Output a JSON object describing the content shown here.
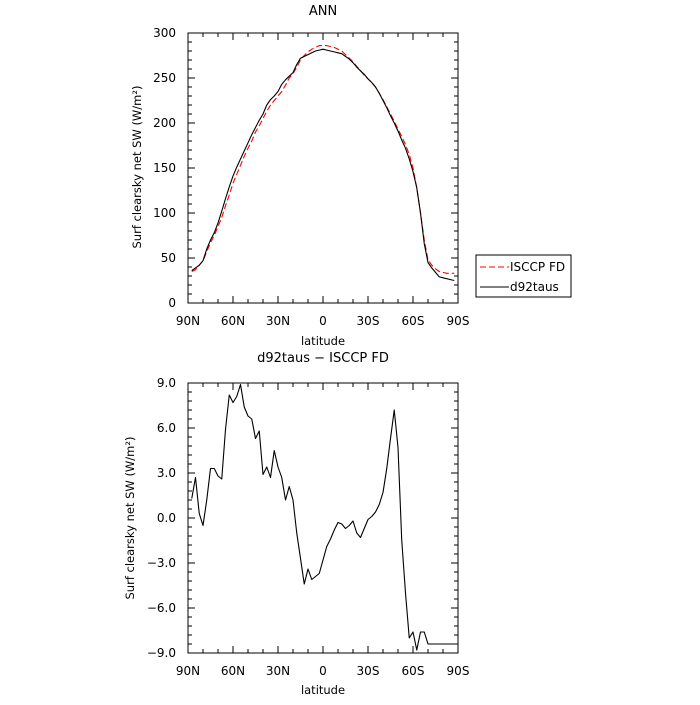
{
  "chart_data": [
    {
      "type": "line",
      "title": "ANN",
      "xlabel": "latitude",
      "ylabel": "Surf clearsky net SW (W/m²)",
      "xlim": [
        90,
        -90
      ],
      "ylim": [
        0,
        300
      ],
      "xticks": [
        90,
        60,
        30,
        0,
        -30,
        -60,
        -90
      ],
      "xtick_labels": [
        "90N",
        "60N",
        "30N",
        "0",
        "30S",
        "60S",
        "90S"
      ],
      "yticks": [
        0,
        50,
        100,
        150,
        200,
        250,
        300
      ],
      "ytick_labels": [
        "0",
        "50",
        "100",
        "150",
        "200",
        "250",
        "300"
      ],
      "legend_position": "outside-right",
      "series": [
        {
          "name": "ISCCP FD",
          "color": "#ff0000",
          "dash": "dashed",
          "x": [
            87.5,
            85,
            82.5,
            80,
            77.5,
            75,
            72.5,
            70,
            67.5,
            65,
            62.5,
            60,
            57.5,
            55,
            52.5,
            50,
            47.5,
            45,
            42.5,
            40,
            37.5,
            35,
            32.5,
            30,
            27.5,
            25,
            22.5,
            20,
            17.5,
            15,
            12.5,
            10,
            7.5,
            5,
            2.5,
            0,
            -2.5,
            -5,
            -7.5,
            -10,
            -12.5,
            -15,
            -17.5,
            -20,
            -22.5,
            -25,
            -27.5,
            -30,
            -32.5,
            -35,
            -37.5,
            -40,
            -42.5,
            -45,
            -47.5,
            -50,
            -52.5,
            -55,
            -57.5,
            -60,
            -62.5,
            -65,
            -67.5,
            -70,
            -72.5,
            -75,
            -77.5,
            -80,
            -82.5,
            -85,
            -87.5
          ],
          "y": [
            35,
            37,
            42,
            47,
            57,
            67,
            75,
            85,
            95,
            108,
            120,
            133,
            143,
            153,
            163,
            172,
            180,
            190,
            197,
            205,
            213,
            220,
            225,
            230,
            235,
            242,
            250,
            255,
            262,
            270,
            275,
            279,
            282,
            284,
            286,
            286,
            286,
            285,
            284,
            282,
            280,
            276,
            272,
            268,
            263,
            258,
            253,
            249,
            245,
            240,
            233,
            226,
            218,
            210,
            202,
            193,
            185,
            176,
            165,
            150,
            128,
            100,
            70,
            48,
            42,
            38,
            35,
            34,
            33,
            33,
            33
          ]
        },
        {
          "name": "d92taus",
          "color": "#000000",
          "dash": "solid",
          "x": [
            87.5,
            85,
            82.5,
            80,
            77.5,
            75,
            72.5,
            70,
            67.5,
            65,
            62.5,
            60,
            57.5,
            55,
            52.5,
            50,
            47.5,
            45,
            42.5,
            40,
            37.5,
            35,
            32.5,
            30,
            27.5,
            25,
            22.5,
            20,
            17.5,
            15,
            12.5,
            10,
            7.5,
            5,
            2.5,
            0,
            -2.5,
            -5,
            -7.5,
            -10,
            -12.5,
            -15,
            -17.5,
            -20,
            -22.5,
            -25,
            -27.5,
            -30,
            -32.5,
            -35,
            -37.5,
            -40,
            -42.5,
            -45,
            -47.5,
            -50,
            -52.5,
            -55,
            -57.5,
            -60,
            -62.5,
            -65,
            -67.5,
            -70,
            -72.5,
            -75,
            -77.5,
            -80,
            -82.5,
            -85,
            -87.5
          ],
          "y": [
            36,
            39,
            42,
            47,
            60,
            70,
            78,
            89,
            102,
            116,
            129,
            141,
            151,
            160,
            169,
            178,
            187,
            195,
            203,
            210,
            220,
            226,
            230,
            235,
            243,
            248,
            252,
            256,
            265,
            272,
            274,
            276,
            278,
            280,
            281,
            282,
            281,
            280,
            279,
            278,
            277,
            274,
            271,
            267,
            262,
            258,
            254,
            249,
            245,
            240,
            233,
            225,
            217,
            208,
            200,
            191,
            181,
            172,
            160,
            146,
            128,
            100,
            66,
            45,
            39,
            34,
            29,
            28,
            27,
            26,
            25
          ]
        }
      ]
    },
    {
      "type": "line",
      "title": "d92taus − ISCCP FD",
      "xlabel": "latitude",
      "ylabel": "Surf clearsky net SW (W/m²)",
      "xlim": [
        90,
        -90
      ],
      "ylim": [
        -9,
        9
      ],
      "xticks": [
        90,
        60,
        30,
        0,
        -30,
        -60,
        -90
      ],
      "xtick_labels": [
        "90N",
        "60N",
        "30N",
        "0",
        "30S",
        "60S",
        "90S"
      ],
      "yticks": [
        -9,
        -6,
        -3,
        0,
        3,
        6,
        9
      ],
      "ytick_labels": [
        "−9.0",
        "−6.0",
        "−3.0",
        "0.0",
        "3.0",
        "6.0",
        "9.0"
      ],
      "series": [
        {
          "name": "",
          "color": "#000000",
          "dash": "solid",
          "x": [
            87.5,
            85,
            82.5,
            80,
            77.5,
            75,
            72.5,
            70,
            67.5,
            65,
            62.5,
            60,
            57.5,
            55,
            52.5,
            50,
            47.5,
            45,
            42.5,
            40,
            37.5,
            35,
            32.5,
            30,
            27.5,
            25,
            22.5,
            20,
            17.5,
            15,
            12.5,
            10,
            7.5,
            5,
            2.5,
            0,
            -2.5,
            -5,
            -7.5,
            -10,
            -12.5,
            -15,
            -17.5,
            -20,
            -22.5,
            -25,
            -27.5,
            -30,
            -32.5,
            -35,
            -37.5,
            -40,
            -42.5,
            -45,
            -47.5,
            -50,
            -52.5,
            -55,
            -57.5,
            -60,
            -62.5,
            -65,
            -67.5,
            -70,
            -72.5,
            -75,
            -77.5,
            -80,
            -82.5,
            -85,
            -87.5
          ],
          "y": [
            1.3,
            2.7,
            0.3,
            -0.5,
            1.2,
            3.3,
            3.3,
            2.8,
            2.6,
            5.9,
            8.2,
            7.7,
            8.1,
            8.9,
            7.4,
            6.8,
            6.6,
            5.3,
            5.8,
            2.9,
            3.4,
            2.7,
            4.5,
            3.4,
            2.7,
            1.2,
            2.1,
            1.2,
            -1.0,
            -2.7,
            -4.4,
            -3.4,
            -4.1,
            -3.9,
            -3.7,
            -2.8,
            -1.9,
            -1.4,
            -0.8,
            -0.3,
            -0.4,
            -0.7,
            -0.5,
            -0.2,
            -1.0,
            -1.3,
            -0.7,
            -0.1,
            0.1,
            0.4,
            0.9,
            1.7,
            3.3,
            5.3,
            7.2,
            4.7,
            -1.5,
            -5.0,
            -8.0,
            -7.6,
            -8.8,
            -7.6,
            -7.6,
            -8.4,
            -8.4,
            -8.4,
            -8.4,
            -8.4,
            -8.4,
            -8.4,
            -8.4
          ]
        }
      ]
    }
  ]
}
